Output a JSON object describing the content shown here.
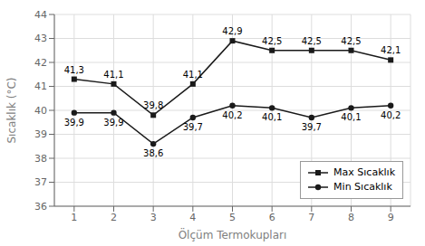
{
  "chart_data": {
    "type": "line",
    "x": [
      1,
      2,
      3,
      4,
      5,
      6,
      7,
      8,
      9
    ],
    "xlabel": "Ölçüm Termokupları",
    "ylabel": "Sıcaklık (°C)",
    "xlim": [
      0.5,
      9.5
    ],
    "ylim": [
      36,
      44
    ],
    "xticks": [
      1,
      2,
      3,
      4,
      5,
      6,
      7,
      8,
      9
    ],
    "yticks": [
      36,
      37,
      38,
      39,
      40,
      41,
      42,
      43,
      44
    ],
    "grid": true,
    "legend": "lower right",
    "data_labels": true,
    "series": [
      {
        "name": "Max Sıcaklık",
        "color": "#1a1a1a",
        "marker": "square",
        "values": [
          41.3,
          41.1,
          39.8,
          41.1,
          42.9,
          42.5,
          42.5,
          42.5,
          42.1
        ],
        "value_labels": [
          "41,3",
          "41,1",
          "39,8",
          "41,1",
          "42,9",
          "42,5",
          "42,5",
          "42,5",
          "42,1"
        ]
      },
      {
        "name": "Min Sıcaklık",
        "color": "#1a1a1a",
        "marker": "circle",
        "values": [
          39.9,
          39.9,
          38.6,
          39.7,
          40.2,
          40.1,
          39.7,
          40.1,
          40.2
        ],
        "value_labels": [
          "39,9",
          "39,9",
          "38,6",
          "39,7",
          "40,2",
          "40,1",
          "39,7",
          "40,1",
          "40,2"
        ]
      }
    ]
  }
}
